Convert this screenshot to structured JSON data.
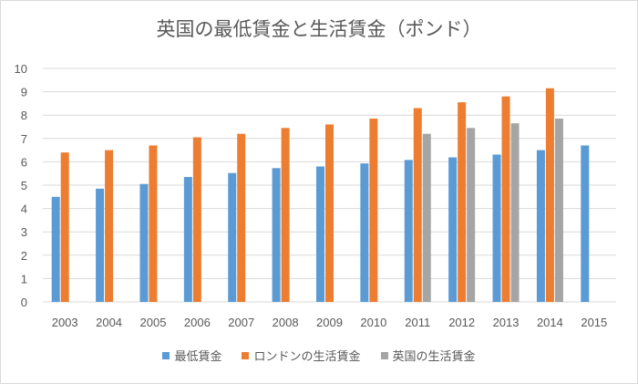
{
  "chart_data": {
    "type": "bar",
    "title": "英国の最低賃金と生活賃金（ポンド）",
    "categories": [
      "2003",
      "2004",
      "2005",
      "2006",
      "2007",
      "2008",
      "2009",
      "2010",
      "2011",
      "2012",
      "2013",
      "2014",
      "2015"
    ],
    "series": [
      {
        "name": "最低賃金",
        "color": "#5b9bd5",
        "values": [
          4.5,
          4.85,
          5.05,
          5.35,
          5.52,
          5.73,
          5.8,
          5.93,
          6.08,
          6.19,
          6.31,
          6.5,
          6.7
        ]
      },
      {
        "name": "ロンドンの生活賃金",
        "color": "#ed7d31",
        "values": [
          6.4,
          6.5,
          6.7,
          7.05,
          7.2,
          7.45,
          7.6,
          7.85,
          8.3,
          8.55,
          8.8,
          9.15,
          null
        ]
      },
      {
        "name": "英国の生活賃金",
        "color": "#a5a5a5",
        "values": [
          null,
          null,
          null,
          null,
          null,
          null,
          null,
          null,
          7.2,
          7.45,
          7.65,
          7.85,
          null
        ]
      }
    ],
    "ylim": [
      0,
      10
    ],
    "yticks": [
      "0",
      "1",
      "2",
      "3",
      "4",
      "5",
      "6",
      "7",
      "8",
      "9",
      "10"
    ],
    "grid": true,
    "legend": "bottom",
    "xlabel": "",
    "ylabel": ""
  }
}
